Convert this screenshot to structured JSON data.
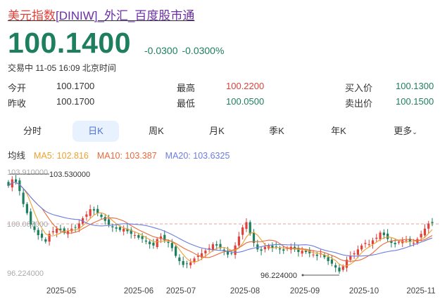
{
  "header": {
    "title_part1": "美元指数",
    "title_part2": "[DINIW]_外汇_百度股市通",
    "price": "100.1400",
    "change": "-0.0300",
    "change_pct": "-0.0300%",
    "status": "交易中 11-05 16:09 北京时间"
  },
  "quotes": [
    {
      "label": "今开",
      "value": "100.1700",
      "color": "#333333"
    },
    {
      "label": "最高",
      "value": "100.2200",
      "color": "#e0413a"
    },
    {
      "label": "买入价",
      "value": "100.1300",
      "color": "#1d7f5e"
    },
    {
      "label": "昨收",
      "value": "100.1700",
      "color": "#333333"
    },
    {
      "label": "最低",
      "value": "100.0500",
      "color": "#1d7f5e"
    },
    {
      "label": "卖出价",
      "value": "100.1500",
      "color": "#1d7f5e"
    }
  ],
  "tabs": [
    "分时",
    "日K",
    "周K",
    "月K",
    "季K",
    "年K",
    "更多"
  ],
  "active_tab": "日K",
  "ma": {
    "label": "均线",
    "ma5": "MA5: 102.816",
    "ma10": "MA10: 103.387",
    "ma20": "MA20: 103.6325",
    "colors": {
      "ma5": "#f0a030",
      "ma10": "#e86a3a",
      "ma20": "#6a7de0"
    }
  },
  "chart_data": {
    "type": "candlestick",
    "y_labels": [
      "103.910000",
      "100.067000",
      "96.224000"
    ],
    "ylim": [
      96.224,
      103.91
    ],
    "ref_line": 100.067,
    "max_marker": "103.530000",
    "min_marker": "96.224000",
    "x_labels": [
      "2025-05",
      "2025-06",
      "2025-07",
      "2025-08",
      "2025-09",
      "2025-10",
      "2025-11"
    ],
    "x_label_index": [
      14,
      33,
      43,
      58,
      73,
      88,
      111
    ],
    "closes": [
      103.0,
      103.5,
      103.3,
      102.6,
      101.6,
      100.9,
      100.0,
      99.6,
      99.2,
      99.0,
      98.7,
      99.3,
      99.5,
      99.7,
      99.6,
      99.4,
      99.5,
      99.7,
      99.8,
      100.1,
      100.5,
      100.8,
      101.2,
      101.1,
      100.9,
      100.6,
      100.3,
      100.0,
      99.8,
      99.7,
      99.6,
      99.7,
      99.5,
      99.3,
      99.2,
      99.0,
      98.9,
      98.7,
      98.5,
      98.4,
      98.9,
      99.1,
      98.8,
      98.6,
      98.2,
      97.6,
      97.2,
      96.9,
      97.0,
      97.1,
      97.4,
      97.6,
      97.8,
      98.0,
      98.2,
      98.5,
      98.4,
      98.2,
      98.0,
      97.7,
      97.8,
      98.4,
      99.1,
      99.8,
      100.2,
      99.3,
      98.6,
      98.1,
      98.0,
      98.3,
      98.4,
      98.2,
      98.3,
      98.1,
      98.0,
      98.2,
      98.3,
      98.1,
      97.9,
      98.0,
      97.9,
      97.8,
      97.7,
      97.6,
      97.8,
      97.5,
      97.2,
      97.0,
      96.7,
      96.4,
      96.8,
      97.3,
      97.6,
      97.8,
      98.1,
      98.4,
      98.6,
      98.5,
      98.8,
      99.0,
      99.4,
      99.2,
      98.9,
      98.6,
      98.5,
      98.7,
      98.8,
      98.8,
      98.7,
      98.6,
      98.9,
      99.3,
      99.7,
      100.1,
      100.14
    ],
    "up_color": "#e0413a",
    "down_color": "#1d7f5e"
  }
}
